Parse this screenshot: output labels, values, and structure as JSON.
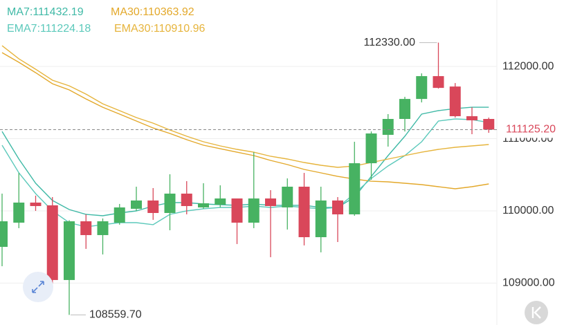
{
  "chart_data": {
    "type": "candlestick",
    "up_color": "#47b262",
    "down_color": "#d9475a",
    "open": [
      109502,
      109837,
      110115,
      110077,
      109043,
      109856,
      109665,
      109837,
      110029,
      110144,
      109971,
      110239,
      110048,
      110086,
      110172,
      109837,
      110172,
      110048,
      110335,
      109636,
      110144,
      109952,
      110660,
      111053,
      111273,
      111550,
      111866,
      111722,
      111311,
      111273
    ],
    "high": [
      110239,
      110526,
      110211,
      110191,
      109870,
      109952,
      109895,
      110096,
      110335,
      110316,
      110507,
      110412,
      110383,
      110354,
      110172,
      110813,
      110287,
      110450,
      110526,
      110335,
      110191,
      110957,
      111100,
      111340,
      111579,
      111904,
      112330,
      111770,
      111435,
      111292
    ],
    "low": [
      109234,
      109761,
      110000,
      108900,
      108559.7,
      109474,
      109397,
      109809,
      110000,
      109876,
      109732,
      109952,
      110029,
      110048,
      109541,
      109761,
      109359,
      109742,
      109522,
      109426,
      109569,
      109933,
      110431,
      110890,
      111100,
      111502,
      111694,
      111292,
      111062,
      111081
    ],
    "close": [
      109856,
      110115,
      110067,
      109043,
      109856,
      109665,
      109856,
      110048,
      110144,
      109971,
      110239,
      110067,
      110105,
      110172,
      109837,
      110172,
      110067,
      110335,
      109636,
      110144,
      109952,
      110660,
      111072,
      111273,
      111550,
      111866,
      111703,
      111311,
      111254,
      111125.2
    ],
    "series": [
      {
        "name": "MA7:111432.19",
        "color": "#3fb9a6",
        "values": [
          111100,
          110718,
          110383,
          110144,
          110019,
          109952,
          109933,
          109971,
          110000,
          110067,
          110115,
          110115,
          110096,
          110086,
          110077,
          110096,
          110077,
          110077,
          110077,
          110048,
          110048,
          110191,
          110478,
          110766,
          111034,
          111340,
          111388,
          111416,
          111435,
          111435
        ]
      },
      {
        "name": "MA30:110363.92",
        "color": "#e3a82a",
        "values": [
          112191,
          112057,
          111914,
          111761,
          111675,
          111550,
          111435,
          111340,
          111244,
          111148,
          111072,
          110986,
          110909,
          110861,
          110813,
          110766,
          110699,
          110641,
          110574,
          110526,
          110478,
          110440,
          110411,
          110402,
          110383,
          110364,
          110335,
          110306,
          110335,
          110373
        ]
      },
      {
        "name": "EMA7:111224.18",
        "color": "#5cc9bb",
        "values": [
          110909,
          110526,
          110239,
          110000,
          109837,
          109780,
          109809,
          109837,
          109837,
          109809,
          109952,
          110000,
          110029,
          110048,
          110048,
          110067,
          110048,
          110067,
          110048,
          110029,
          110048,
          110239,
          110450,
          110622,
          110766,
          110957,
          111244,
          111273,
          111263,
          111224
        ]
      },
      {
        "name": "EMA30:110910.96",
        "color": "#e6b43c",
        "values": [
          112287,
          112105,
          111962,
          111809,
          111732,
          111617,
          111483,
          111388,
          111292,
          111215,
          111120,
          111034,
          110957,
          110900,
          110852,
          110813,
          110756,
          110718,
          110670,
          110632,
          110603,
          110622,
          110670,
          110718,
          110766,
          110813,
          110852,
          110881,
          110900,
          110919
        ]
      }
    ],
    "ylim": [
      108420,
      112920
    ],
    "yticks": [
      {
        "value": 112000,
        "label": "112000.00"
      },
      {
        "value": 111000,
        "label": "111000.00"
      },
      {
        "value": 110000,
        "label": "110000.00"
      },
      {
        "value": 109000,
        "label": "109000.00"
      }
    ],
    "grid": true,
    "high_label": {
      "value": 112330,
      "label": "112330.00"
    },
    "low_label": {
      "value": 108559.7,
      "label": "108559.70"
    },
    "last_price": {
      "value": 111125.2,
      "label": "111125.20"
    }
  }
}
